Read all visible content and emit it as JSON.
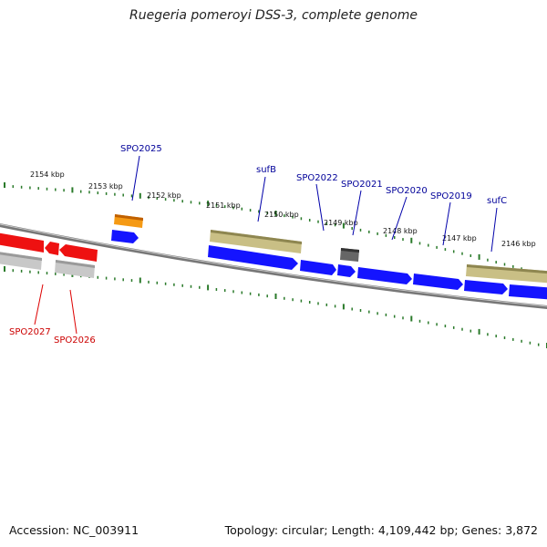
{
  "title": "Ruegeria pomeroyi DSS-3, complete genome",
  "footer": {
    "accession": "Accession: NC_003911",
    "summary": "Topology: circular; Length: 4,109,442 bp; Genes: 3,872"
  },
  "colors": {
    "background": "#ffffff",
    "backbone": "#888888",
    "tick": "#2a7a2a",
    "forward_cds": "#0000ee",
    "reverse_cds": "#ee0000",
    "forward_label": "#000099",
    "reverse_label": "#cc0000",
    "annotation_bar": "#b8ad6a",
    "highlight": "#f08a00",
    "gray_feature": "#bdbdbd",
    "dark_feature": "#555555"
  },
  "scale_labels": [
    "2154 kbp",
    "2153 kbp",
    "2152 kbp",
    "2151 kbp",
    "2150 kbp",
    "2149 kbp",
    "2148 kbp",
    "2147 kbp",
    "2146 kbp"
  ],
  "forward_gene_labels": [
    "SPO2025",
    "sufB",
    "SPO2022",
    "SPO2021",
    "SPO2020",
    "SPO2019",
    "sufC"
  ],
  "reverse_gene_labels": [
    "SPO2027",
    "SPO2026"
  ]
}
